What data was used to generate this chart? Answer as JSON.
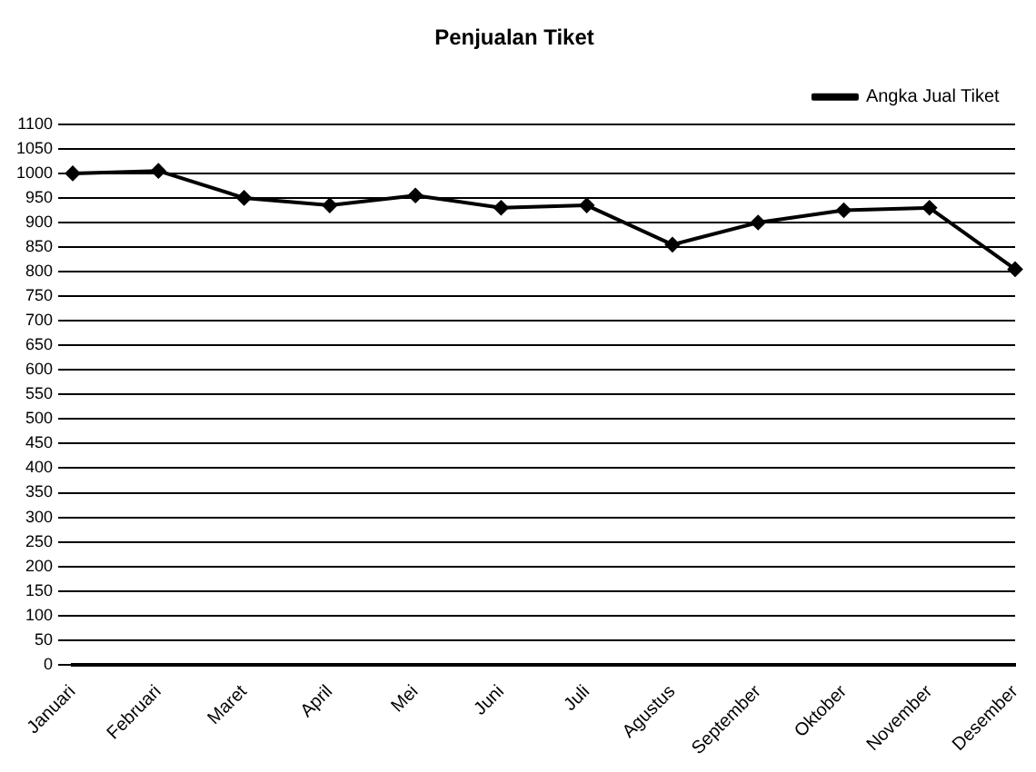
{
  "chart_data": {
    "type": "line",
    "title": "Penjualan Tiket",
    "categories": [
      "Januari",
      "Februari",
      "Maret",
      "April",
      "Mei",
      "Juni",
      "Juli",
      "Agustus",
      "September",
      "Oktober",
      "November",
      "Desember"
    ],
    "series": [
      {
        "name": "Angka Jual Tiket",
        "color": "#000000",
        "values": [
          1000,
          1005,
          950,
          935,
          955,
          930,
          935,
          855,
          900,
          925,
          930,
          805
        ]
      }
    ],
    "ylim": [
      0,
      1100
    ],
    "yticks": [
      0,
      50,
      100,
      150,
      200,
      250,
      300,
      350,
      400,
      450,
      500,
      550,
      600,
      650,
      700,
      750,
      800,
      850,
      900,
      950,
      1000,
      1050,
      1100
    ],
    "grid": "y",
    "legend": "top right",
    "marker": "diamond",
    "line_style": "solid"
  }
}
